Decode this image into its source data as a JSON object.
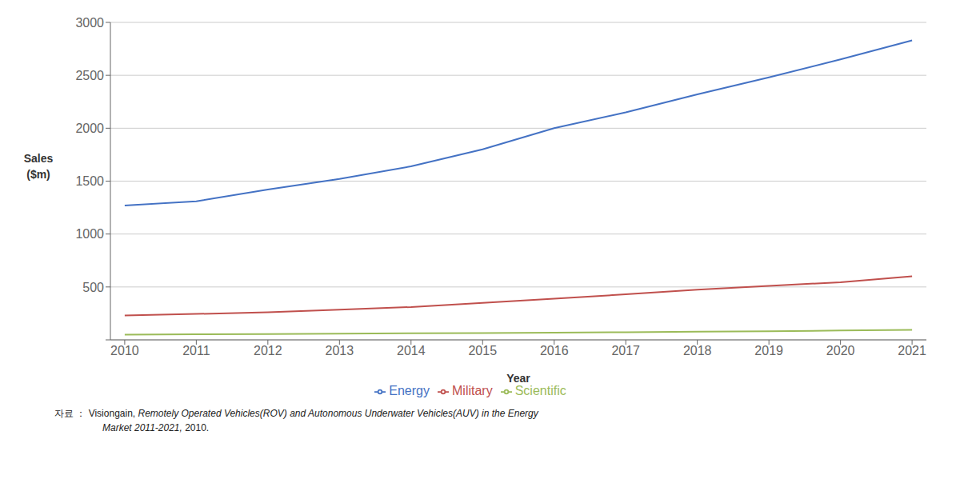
{
  "chart_data": {
    "type": "line",
    "x": [
      2010,
      2011,
      2012,
      2013,
      2014,
      2015,
      2016,
      2017,
      2018,
      2019,
      2020,
      2021
    ],
    "series": [
      {
        "name": "Energy",
        "color": "#4472C4",
        "values": [
          1270,
          1310,
          1420,
          1520,
          1640,
          1800,
          2000,
          2150,
          2320,
          2480,
          2650,
          2830
        ]
      },
      {
        "name": "Military",
        "color": "#C0504D",
        "values": [
          230,
          245,
          260,
          285,
          310,
          350,
          390,
          430,
          475,
          510,
          545,
          600
        ]
      },
      {
        "name": "Scientific",
        "color": "#9BBB59",
        "values": [
          50,
          52,
          55,
          58,
          62,
          65,
          68,
          72,
          78,
          82,
          88,
          95
        ]
      }
    ],
    "xlabel": "Year",
    "ylabel": [
      "Sales",
      "($m)"
    ],
    "xlim": [
      2009.8,
      2021.2
    ],
    "xticks": [
      2010,
      2011,
      2012,
      2013,
      2014,
      2015,
      2016,
      2017,
      2018,
      2019,
      2020,
      2021
    ],
    "ylim": [
      0,
      3000
    ],
    "yticks": [
      {
        "value": 0,
        "label": ""
      },
      500,
      1000,
      1500,
      2000,
      2500,
      3000
    ],
    "grid": true,
    "legend": "bottom",
    "annotations": [
      "자료 ： Visiongain, ",
      "Remotely Operated Vehicles(ROV) and Autonomous Underwater Vehicles(AUV) in the Energy",
      "Market 2011-2021,",
      " 2010."
    ]
  }
}
